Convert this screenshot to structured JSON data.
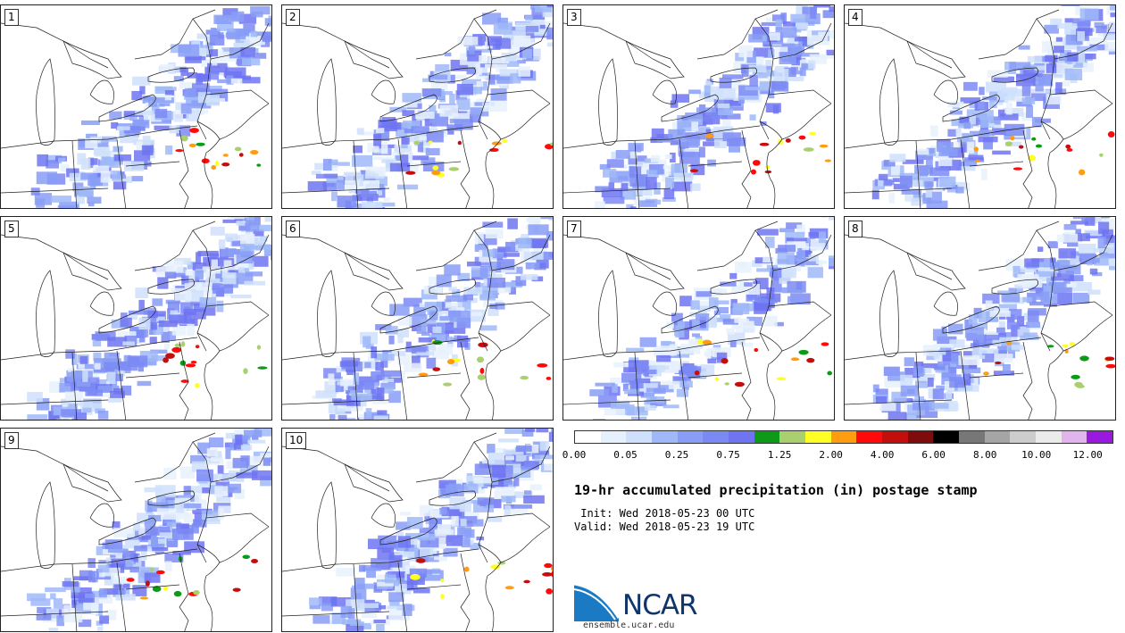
{
  "panels": [
    {
      "label": "1",
      "seed": 1
    },
    {
      "label": "2",
      "seed": 2
    },
    {
      "label": "3",
      "seed": 3
    },
    {
      "label": "4",
      "seed": 4
    },
    {
      "label": "5",
      "seed": 5
    },
    {
      "label": "6",
      "seed": 6
    },
    {
      "label": "7",
      "seed": 7
    },
    {
      "label": "8",
      "seed": 8
    },
    {
      "label": "9",
      "seed": 9
    },
    {
      "label": "10",
      "seed": 10
    }
  ],
  "legend": {
    "colors": [
      "#ffffff",
      "#e7f1fd",
      "#cfe0fc",
      "#9fb9f8",
      "#889ef6",
      "#7b89f3",
      "#6f74f1",
      "#0e9a19",
      "#a9cf6f",
      "#ffff24",
      "#ff9c0f",
      "#ff0a0a",
      "#c30e0e",
      "#7f0c0c",
      "#000000",
      "#777777",
      "#a5a5a5",
      "#cccccc",
      "#ebebeb",
      "#e2b4ee",
      "#9a19de"
    ],
    "tick_labels": [
      "0.00",
      "0.05",
      "0.25",
      "0.75",
      "1.25",
      "2.00",
      "4.00",
      "6.00",
      "8.00",
      "10.00",
      "12.00"
    ]
  },
  "title": "19-hr accumulated precipitation (in) postage stamp",
  "init": " Init: Wed 2018-05-23 00 UTC",
  "valid": "Valid: Wed 2018-05-23 19 UTC",
  "logo": {
    "text": "NCAR",
    "primary": "#10356b",
    "accent": "#1a7ac4"
  },
  "site": "ensemble.ucar.edu"
}
